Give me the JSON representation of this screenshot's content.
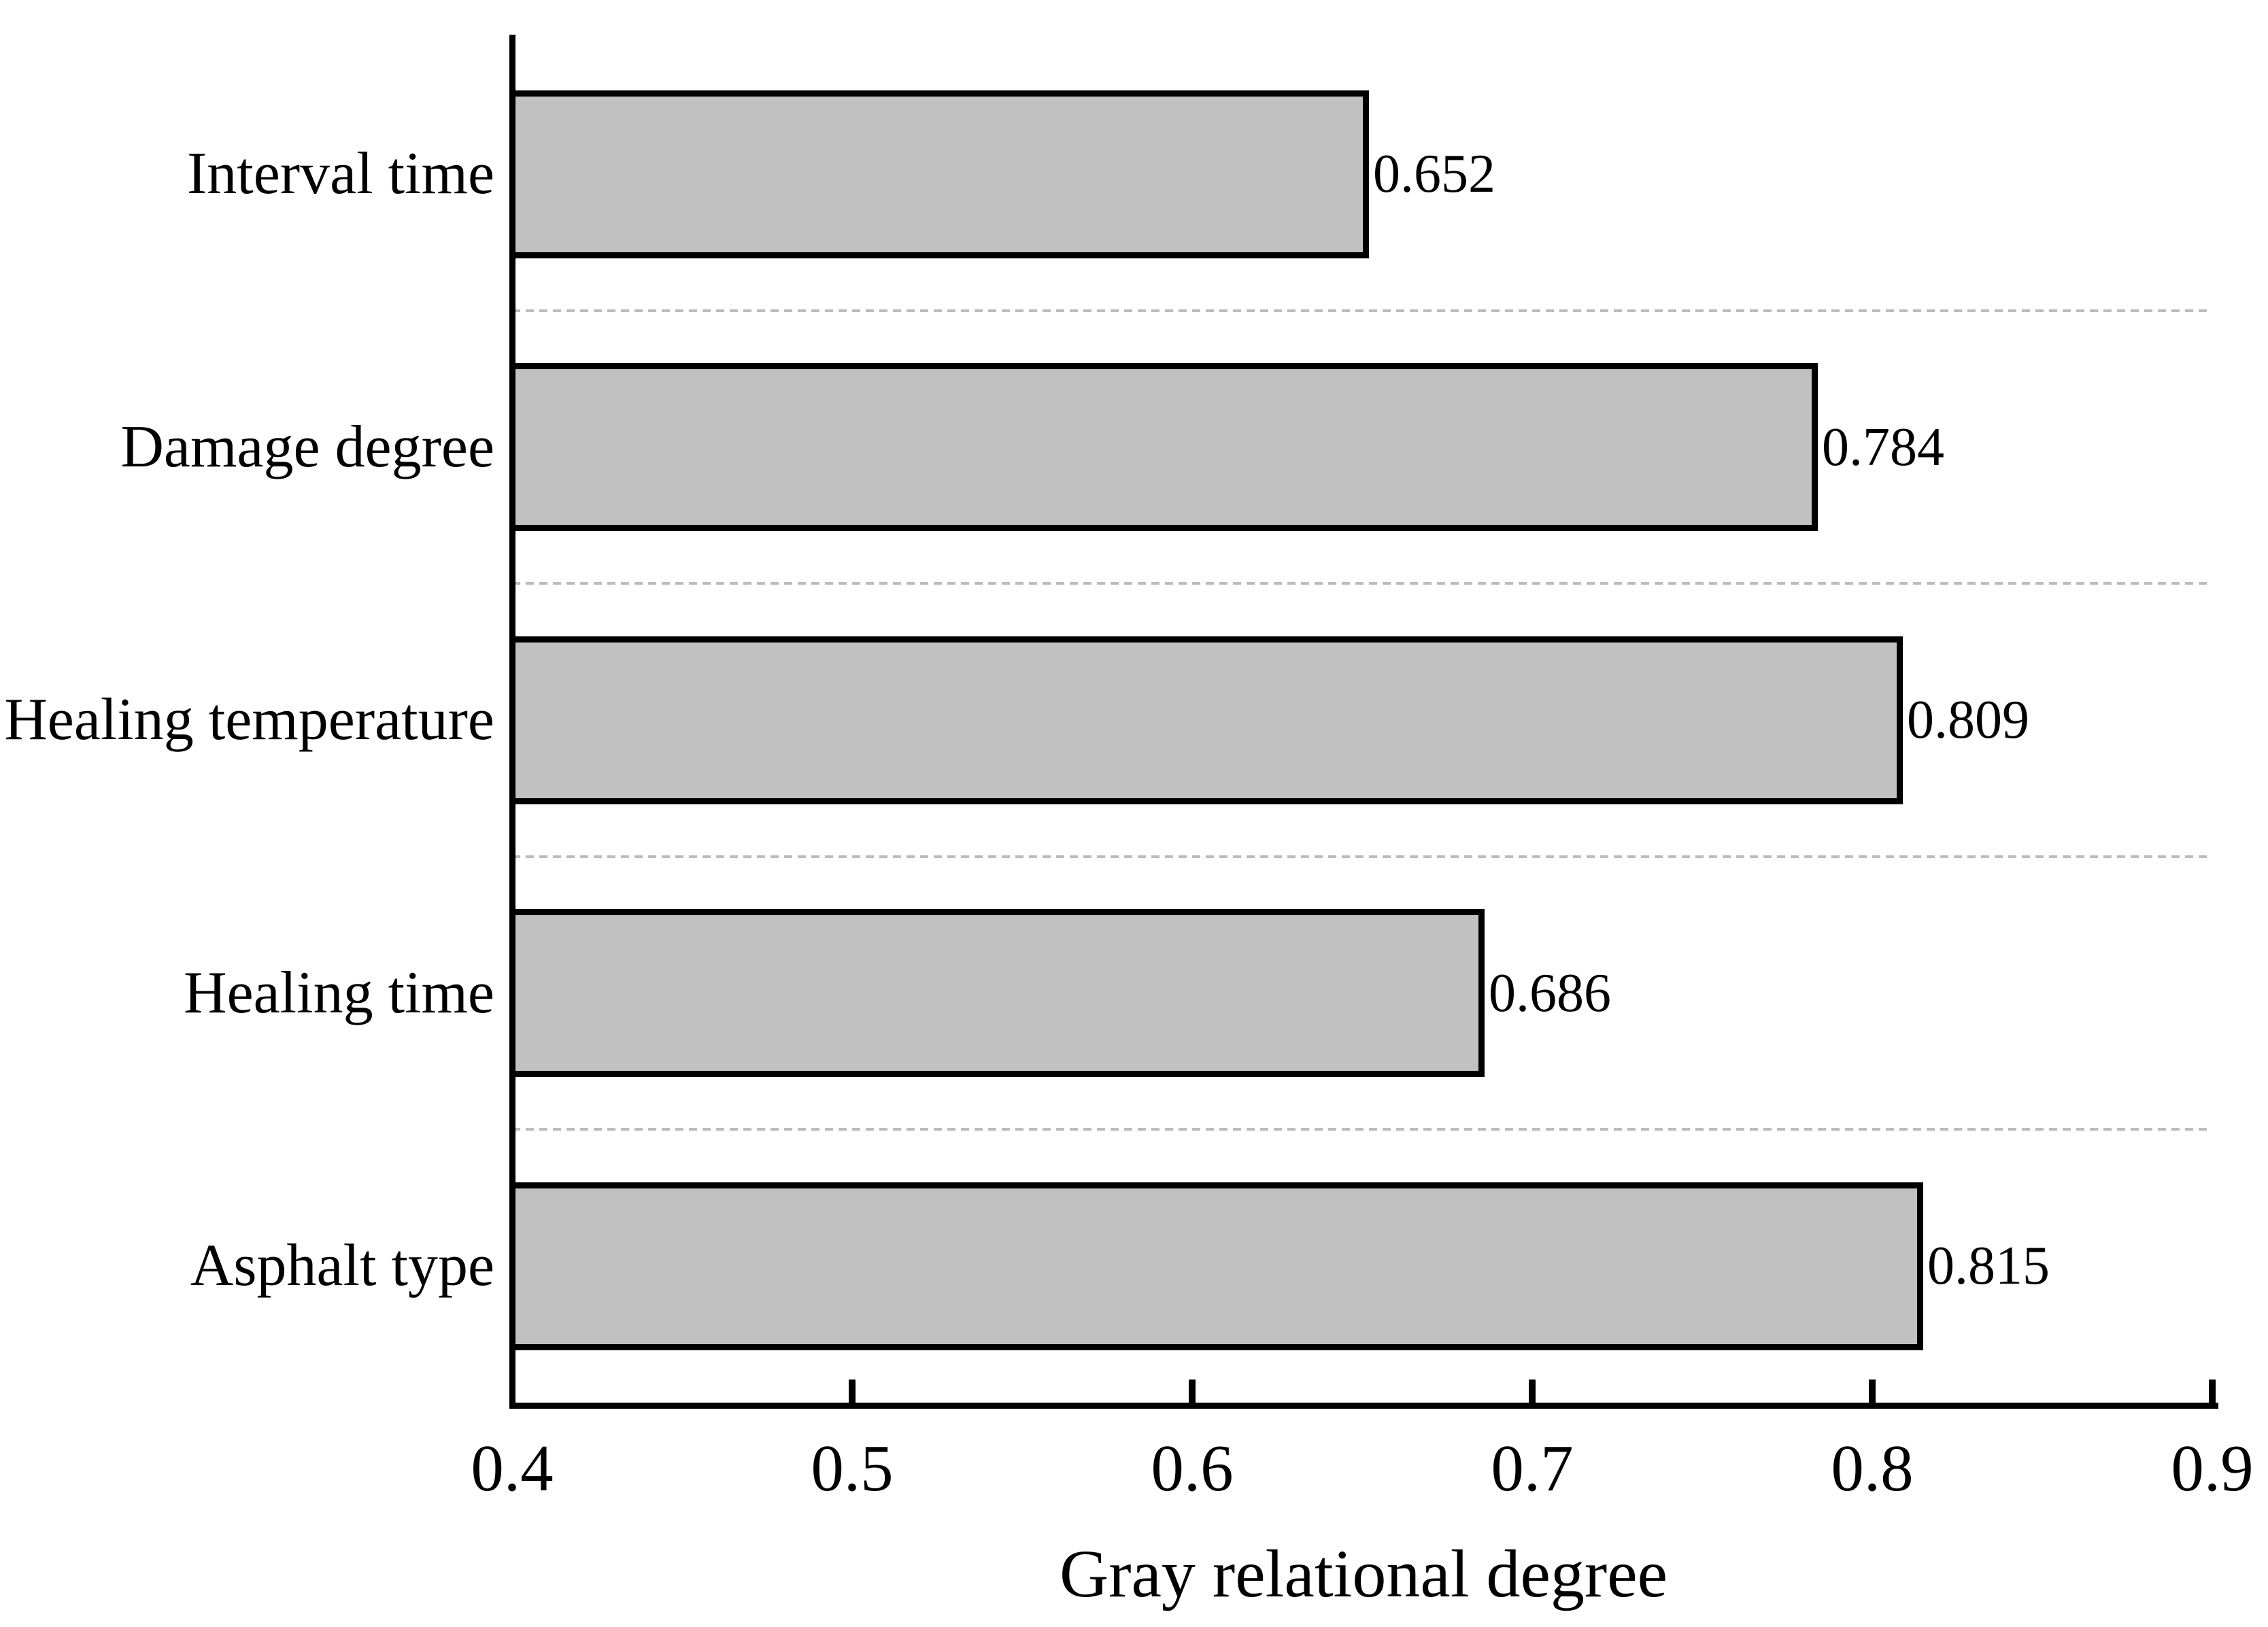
{
  "chart_data": {
    "type": "bar",
    "orientation": "horizontal",
    "title": "",
    "categories": [
      "Interval time",
      "Damage degree",
      "Healing temperature",
      "Healing time",
      "Asphalt type"
    ],
    "values": [
      0.652,
      0.784,
      0.809,
      0.686,
      0.815
    ],
    "value_labels": [
      "0.652",
      "0.784",
      "0.809",
      "0.686",
      "0.815"
    ],
    "xlabel": "Gray relational degree",
    "ylabel": "",
    "xlim": [
      0.4,
      0.9
    ],
    "xticks": [
      0.4,
      0.5,
      0.6,
      0.7,
      0.8,
      0.9
    ],
    "xtick_labels": [
      "0.4",
      "0.5",
      "0.6",
      "0.7",
      "0.8",
      "0.9"
    ],
    "legend": null,
    "grid": "dashed gray horizontal separators between category slots",
    "colors": {
      "bar_fill": "#c1c1c1",
      "bar_border": "#000000",
      "axis": "#000000",
      "gridline": "#bdbdbd",
      "background": "#ffffff",
      "text": "#000000"
    }
  }
}
